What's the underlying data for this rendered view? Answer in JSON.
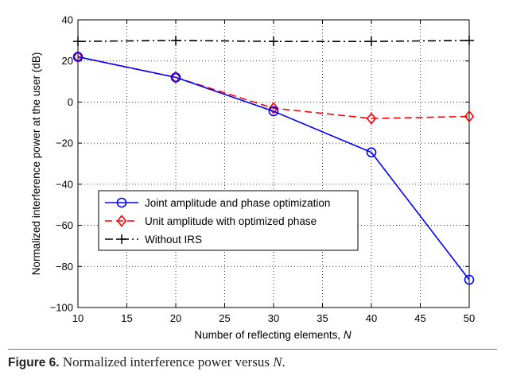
{
  "chart_data": {
    "type": "line",
    "title": "",
    "xlabel": "Number of reflecting elements, ",
    "xlabel_var": "N",
    "ylabel": "Normalized interference power at the user (dB)",
    "xlim": [
      10,
      50
    ],
    "ylim": [
      -100,
      40
    ],
    "xticks": [
      10,
      15,
      20,
      25,
      30,
      35,
      40,
      45,
      50
    ],
    "yticks": [
      -100,
      -80,
      -60,
      -40,
      -20,
      0,
      20,
      40
    ],
    "ytick_labels": [
      "−100",
      "−80",
      "−60",
      "−40",
      "−20",
      "0",
      "20",
      "40"
    ],
    "grid": true,
    "legend_position": "center-left",
    "series": [
      {
        "name": "Joint amplitude and phase optimization",
        "color": "#0000ff",
        "line_style": "solid",
        "marker": "circle",
        "x": [
          10,
          20,
          30,
          40,
          50
        ],
        "values": [
          22,
          12,
          -4.5,
          -24.5,
          -86.5
        ]
      },
      {
        "name": "Unit amplitude with optimized phase",
        "color": "#ff0000",
        "line_style": "dashed",
        "marker": "diamond",
        "x": [
          10,
          20,
          30,
          40,
          50
        ],
        "values": [
          22,
          12,
          -3,
          -8,
          -7
        ]
      },
      {
        "name": "Without IRS",
        "color": "#000000",
        "line_style": "dash-dot",
        "marker": "plus",
        "x": [
          10,
          20,
          30,
          40,
          50
        ],
        "values": [
          29.5,
          30,
          29.5,
          29.5,
          30
        ]
      }
    ]
  },
  "caption": {
    "label": "Figure 6.",
    "text": " Normalized interference power versus ",
    "var": "N",
    "end": "."
  }
}
